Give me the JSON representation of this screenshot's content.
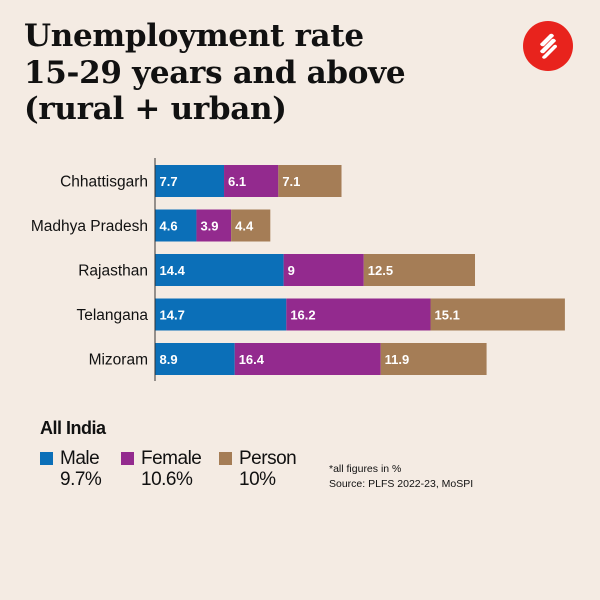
{
  "title_lines": [
    "Unemployment rate",
    "15-29 years and above",
    "(rural + urban)"
  ],
  "logo": {
    "icon": "indian-express-logo",
    "color": "#e8231d"
  },
  "chart_data": {
    "type": "bar",
    "orientation": "horizontal",
    "stacked": true,
    "categories": [
      "Chhattisgarh",
      "Madhya Pradesh",
      "Rajasthan",
      "Telangana",
      "Mizoram"
    ],
    "series": [
      {
        "name": "Male",
        "color": "#0b6fb8",
        "values": [
          7.7,
          4.6,
          14.4,
          14.7,
          8.9
        ]
      },
      {
        "name": "Female",
        "color": "#932a8e",
        "values": [
          6.1,
          3.9,
          9,
          16.2,
          16.4
        ]
      },
      {
        "name": "Person",
        "color": "#a57d56",
        "values": [
          7.1,
          4.4,
          12.5,
          15.1,
          11.9
        ]
      }
    ],
    "grid": false,
    "legend_placement": "bottom-left"
  },
  "legend": {
    "title": "All India",
    "items": [
      {
        "name": "Male",
        "value": "9.7%",
        "color": "#0b6fb8"
      },
      {
        "name": "Female",
        "value": "10.6%",
        "color": "#932a8e"
      },
      {
        "name": "Person",
        "value": "10%",
        "color": "#a57d56"
      }
    ]
  },
  "note": "*all figures in %",
  "source": "Source: PLFS 2022-23, MoSPI"
}
